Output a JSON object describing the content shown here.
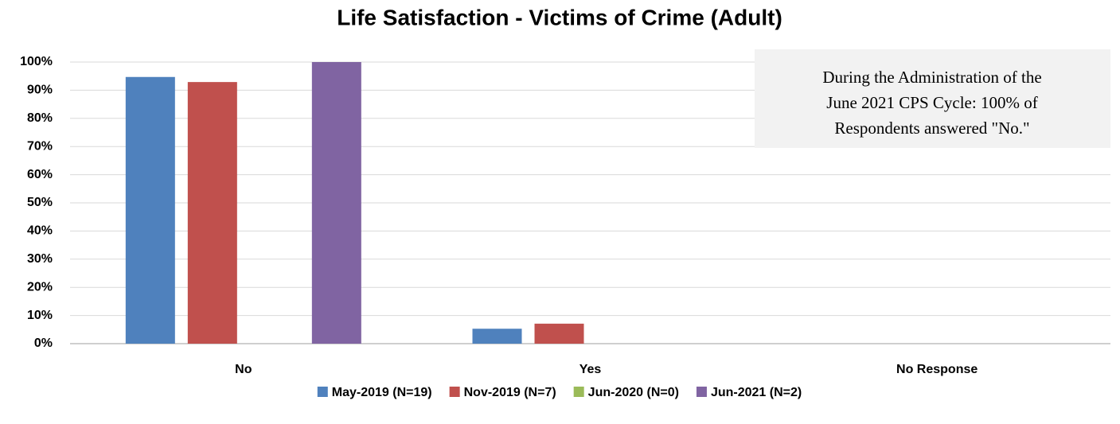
{
  "chart_data": {
    "type": "bar",
    "title": "Life Satisfaction - Victims of Crime (Adult)",
    "categories": [
      "No",
      "Yes",
      "No Response"
    ],
    "series": [
      {
        "name": "May-2019 (N=19)",
        "color": "#4f81bd",
        "values": [
          94.7,
          5.3,
          0
        ]
      },
      {
        "name": "Nov-2019 (N=7)",
        "color": "#c0504d",
        "values": [
          92.9,
          7.1,
          0
        ]
      },
      {
        "name": "Jun-2020 (N=0)",
        "color": "#9bbb59",
        "values": [
          0,
          0,
          0
        ]
      },
      {
        "name": "Jun-2021 (N=2)",
        "color": "#8064a2",
        "values": [
          100,
          0,
          0
        ]
      }
    ],
    "ylim": [
      0,
      100
    ],
    "yticks": [
      {
        "value": 0,
        "label": "0%"
      },
      {
        "value": 10,
        "label": "10%"
      },
      {
        "value": 20,
        "label": "20%"
      },
      {
        "value": 30,
        "label": "30%"
      },
      {
        "value": 40,
        "label": "40%"
      },
      {
        "value": 50,
        "label": "50%"
      },
      {
        "value": 60,
        "label": "60%"
      },
      {
        "value": 70,
        "label": "70%"
      },
      {
        "value": 80,
        "label": "80%"
      },
      {
        "value": 90,
        "label": "90%"
      },
      {
        "value": 100,
        "label": "100%"
      }
    ],
    "grid": true,
    "legend": "bottom",
    "annotation": [
      "During the Administration of the",
      "June 2021 CPS Cycle: 100% of",
      "Respondents answered \"No.\""
    ]
  }
}
